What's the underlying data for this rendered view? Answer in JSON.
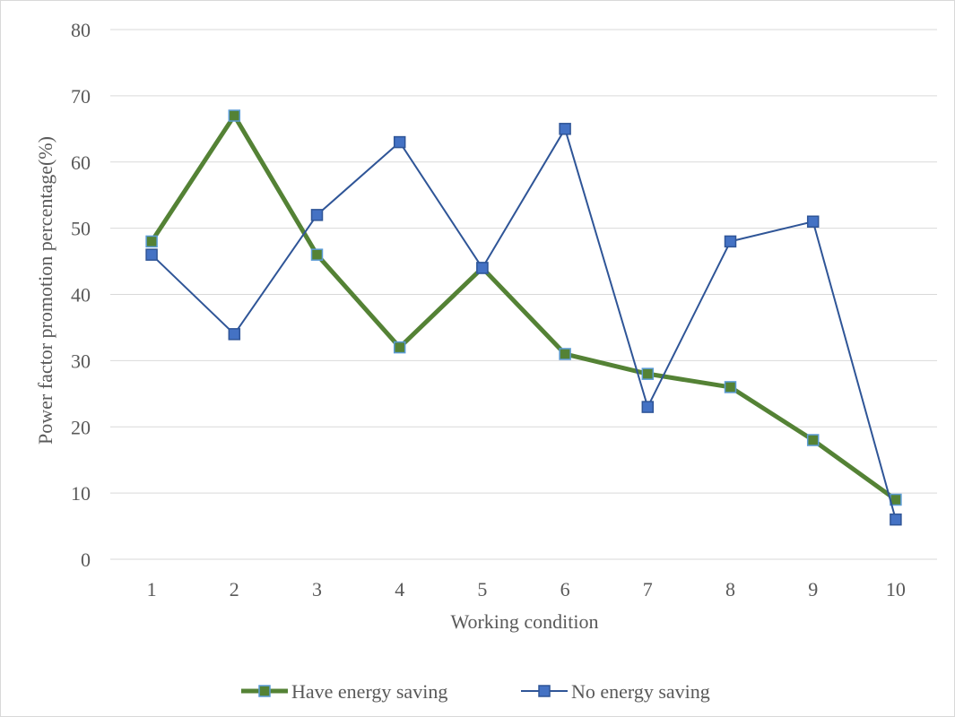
{
  "chart_data": {
    "type": "line",
    "title": "",
    "xlabel": "Working condition",
    "ylabel": "Power factor promotion percentage(%)",
    "categories": [
      "1",
      "2",
      "3",
      "4",
      "5",
      "6",
      "7",
      "8",
      "9",
      "10"
    ],
    "ylim": [
      0,
      80
    ],
    "yticks": [
      "0",
      "10",
      "20",
      "30",
      "40",
      "50",
      "60",
      "70",
      "80"
    ],
    "grid": true,
    "legend_position": "bottom",
    "series": [
      {
        "name": "Have energy saving",
        "values": [
          48,
          67,
          46,
          32,
          44,
          31,
          28,
          26,
          18,
          9
        ],
        "line_color": "#548235",
        "marker_fill": "#548235",
        "marker_edge": "#5b9bd5"
      },
      {
        "name": "No energy saving",
        "values": [
          46,
          34,
          52,
          63,
          44,
          65,
          23,
          48,
          51,
          6
        ],
        "line_color": "#2f5597",
        "marker_fill": "#4472c4",
        "marker_edge": "#2f5597"
      }
    ]
  }
}
